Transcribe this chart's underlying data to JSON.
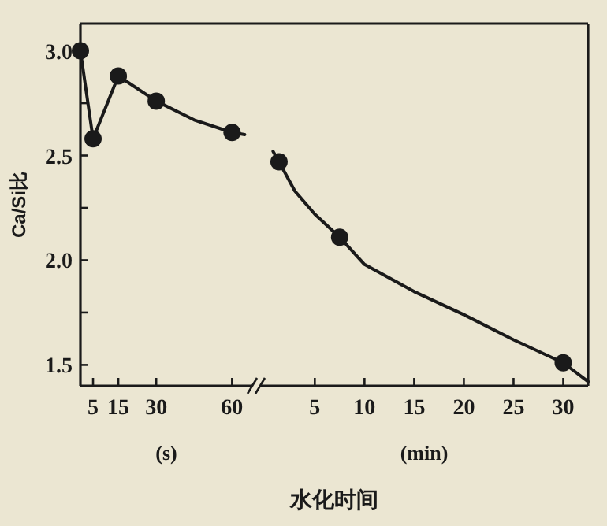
{
  "chart_data": [
    {
      "type": "line",
      "xlabel": "(s)",
      "ylabel": "Ca/Si比",
      "annotations": [
        "水化时间"
      ],
      "xlim": [
        0,
        68
      ],
      "ylim": [
        1.4,
        3.13
      ],
      "xticks": [
        5,
        15,
        30,
        60
      ],
      "yticks": [
        1.5,
        {
          "value": 1.75,
          "label": null
        },
        {
          "value": 2.0,
          "label": "2.0"
        },
        {
          "value": 2.25,
          "label": null
        },
        2.5,
        {
          "value": 2.75,
          "label": null
        },
        {
          "value": 3.0,
          "label": "3.0"
        }
      ],
      "series": [
        {
          "type": "line",
          "color": "#1a1a1a",
          "x": [
            0,
            5,
            15,
            30,
            45,
            60,
            65
          ],
          "values": [
            3.0,
            2.58,
            2.88,
            2.76,
            2.67,
            2.61,
            2.6
          ]
        },
        {
          "type": "scatter",
          "marker": "circle",
          "color": "#1a1a1a",
          "x": [
            0,
            5,
            15,
            30,
            60
          ],
          "values": [
            3.0,
            2.58,
            2.88,
            2.76,
            2.61
          ]
        }
      ]
    },
    {
      "type": "line",
      "xlabel": "(min)",
      "tick_labels": "x",
      "xlim": [
        -0.5,
        32.5
      ],
      "ylim": [
        1.4,
        3.13
      ],
      "xticks": [
        5,
        10,
        15,
        20,
        25,
        30
      ],
      "series": [
        {
          "type": "line",
          "color": "#1a1a1a",
          "x": [
            0.8,
            1.4,
            3,
            5,
            7.5,
            10,
            15,
            20,
            25,
            30,
            32.5
          ],
          "values": [
            2.52,
            2.47,
            2.33,
            2.22,
            2.11,
            1.98,
            1.85,
            1.74,
            1.62,
            1.51,
            1.42
          ]
        },
        {
          "type": "scatter",
          "marker": "circle",
          "color": "#1a1a1a",
          "x": [
            1.4,
            7.5,
            30
          ],
          "values": [
            2.47,
            2.11,
            1.51
          ]
        }
      ]
    }
  ]
}
